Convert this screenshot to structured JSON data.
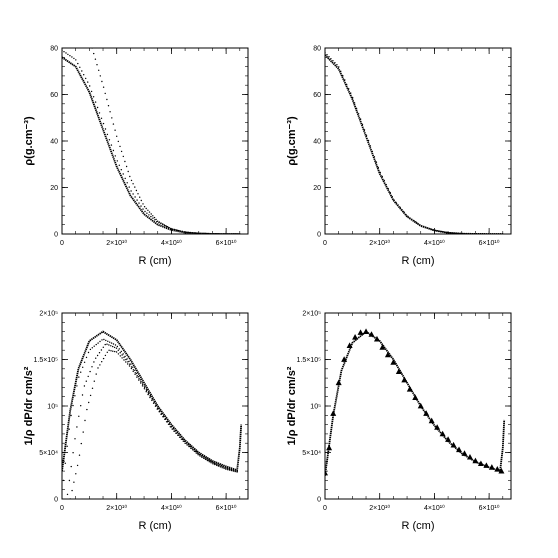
{
  "chart_data": [
    {
      "type": "scatter",
      "panel": "top-left",
      "xlabel": "R (cm)",
      "ylabel": "ρ(g.cm⁻³)",
      "xlim": [
        0,
        68000000000.0
      ],
      "ylim": [
        0,
        80
      ],
      "xticks": [
        {
          "v": 0,
          "t": "0"
        },
        {
          "v": 20000000000.0,
          "t": "2×10¹⁰"
        },
        {
          "v": 40000000000.0,
          "t": "4×10¹⁰"
        },
        {
          "v": 60000000000.0,
          "t": "6×10¹⁰"
        }
      ],
      "yticks": [
        {
          "v": 0,
          "t": "0"
        },
        {
          "v": 20,
          "t": "20"
        },
        {
          "v": 40,
          "t": "40"
        },
        {
          "v": 60,
          "t": "60"
        },
        {
          "v": 80,
          "t": "80"
        }
      ],
      "series": [
        {
          "style": "thick",
          "x": [
            0,
            5000000000.0,
            10000000000.0,
            15000000000.0,
            20000000000.0,
            25000000000.0,
            30000000000.0,
            35000000000.0,
            40000000000.0,
            45000000000.0,
            50000000000.0,
            55000000000.0,
            60000000000.0,
            65000000000.0
          ],
          "y": [
            76,
            72,
            61,
            45,
            29,
            16.5,
            8.5,
            4,
            1.7,
            0.6,
            0.2,
            0.05,
            0.01,
            0
          ]
        },
        {
          "style": "dotted",
          "x": [
            0,
            5000000000.0,
            10000000000.0,
            15000000000.0,
            20000000000.0,
            25000000000.0,
            30000000000.0,
            35000000000.0,
            40000000000.0,
            45000000000.0,
            50000000000.0,
            55000000000.0,
            60000000000.0,
            65000000000.0
          ],
          "y": [
            79,
            75,
            64,
            48,
            32,
            19,
            10,
            5,
            2.2,
            0.8,
            0.3,
            0.08,
            0.02,
            0
          ]
        },
        {
          "style": "dotted",
          "x": [
            11000000000.0,
            15000000000.0,
            20000000000.0,
            25000000000.0,
            30000000000.0,
            35000000000.0,
            40000000000.0,
            45000000000.0,
            50000000000.0,
            55000000000.0,
            60000000000.0,
            65000000000.0
          ],
          "y": [
            80,
            64,
            42,
            24,
            12,
            5.5,
            2.2,
            0.8,
            0.3,
            0.1,
            0.02,
            0
          ]
        }
      ]
    },
    {
      "type": "scatter",
      "panel": "top-right",
      "xlabel": "R (cm)",
      "ylabel": "ρ(g.cm⁻³)",
      "xlim": [
        0,
        68000000000.0
      ],
      "ylim": [
        0,
        80
      ],
      "xticks": [
        {
          "v": 0,
          "t": "0"
        },
        {
          "v": 20000000000.0,
          "t": "2×10¹⁰"
        },
        {
          "v": 40000000000.0,
          "t": "4×10¹⁰"
        },
        {
          "v": 60000000000.0,
          "t": "6×10¹⁰"
        }
      ],
      "yticks": [
        {
          "v": 0,
          "t": "0"
        },
        {
          "v": 20,
          "t": "20"
        },
        {
          "v": 40,
          "t": "40"
        },
        {
          "v": 60,
          "t": "60"
        },
        {
          "v": 80,
          "t": "80"
        }
      ],
      "series": [
        {
          "style": "thick",
          "x": [
            0,
            5000000000.0,
            10000000000.0,
            15000000000.0,
            20000000000.0,
            25000000000.0,
            30000000000.0,
            35000000000.0,
            40000000000.0,
            45000000000.0,
            50000000000.0,
            55000000000.0,
            60000000000.0,
            65000000000.0
          ],
          "y": [
            77,
            71,
            58,
            42,
            26,
            14.5,
            7.5,
            3.5,
            1.5,
            0.5,
            0.15,
            0.04,
            0.01,
            0
          ]
        },
        {
          "style": "dotted",
          "x": [
            0,
            5000000000.0,
            10000000000.0,
            15000000000.0,
            20000000000.0,
            25000000000.0,
            30000000000.0,
            35000000000.0,
            40000000000.0,
            45000000000.0,
            50000000000.0,
            55000000000.0,
            60000000000.0,
            65000000000.0
          ],
          "y": [
            78,
            72,
            59,
            43,
            27,
            15,
            7.8,
            3.7,
            1.6,
            0.55,
            0.17,
            0.05,
            0.01,
            0
          ]
        }
      ]
    },
    {
      "type": "scatter",
      "panel": "bottom-left",
      "xlabel": "R (cm)",
      "ylabel": "1/ρ dP/dr  cm/s²",
      "xlim": [
        0,
        68000000000.0
      ],
      "ylim": [
        0,
        200000
      ],
      "xticks": [
        {
          "v": 0,
          "t": "0"
        },
        {
          "v": 20000000000.0,
          "t": "2×10¹⁰"
        },
        {
          "v": 40000000000.0,
          "t": "4×10¹⁰"
        },
        {
          "v": 60000000000.0,
          "t": "6×10¹⁰"
        }
      ],
      "yticks": [
        {
          "v": 0,
          "t": "0"
        },
        {
          "v": 50000,
          "t": "5×10⁴"
        },
        {
          "v": 100000,
          "t": "10⁵"
        },
        {
          "v": 150000,
          "t": "1.5×10⁵"
        },
        {
          "v": 200000,
          "t": "2×10⁵"
        }
      ],
      "series": [
        {
          "style": "thick",
          "x": [
            0,
            3000000000.0,
            6000000000.0,
            10000000000.0,
            15000000000.0,
            20000000000.0,
            25000000000.0,
            30000000000.0,
            35000000000.0,
            40000000000.0,
            45000000000.0,
            50000000000.0,
            55000000000.0,
            60000000000.0,
            64000000000.0,
            65000000000.0,
            65500000000.0
          ],
          "y": [
            30000,
            95000,
            140000,
            170000,
            180000,
            171000,
            150000,
            125000,
            100000,
            80000,
            63000,
            50000,
            41000,
            35000,
            31000,
            55000,
            80000
          ]
        },
        {
          "style": "dotted",
          "x": [
            500000000.0,
            3000000000.0,
            6000000000.0,
            10000000000.0,
            15000000000.0,
            20000000000.0,
            25000000000.0,
            30000000000.0,
            35000000000.0,
            40000000000.0,
            45000000000.0,
            50000000000.0,
            55000000000.0,
            60000000000.0,
            64000000000.0
          ],
          "y": [
            20000,
            85000,
            130000,
            160000,
            172000,
            165000,
            146000,
            122000,
            98000,
            78000,
            62000,
            49000,
            40000,
            34000,
            30000
          ]
        },
        {
          "style": "dotted",
          "x": [
            2000000000.0,
            5000000000.0,
            8000000000.0,
            12000000000.0,
            16000000000.0,
            20000000000.0,
            25000000000.0,
            30000000000.0,
            35000000000.0,
            40000000000.0,
            45000000000.0,
            50000000000.0,
            55000000000.0,
            60000000000.0,
            64000000000.0
          ],
          "y": [
            5000,
            70000,
            120000,
            150000,
            167000,
            162000,
            144000,
            121000,
            97000,
            77000,
            61000,
            48000,
            39000,
            33000,
            29500
          ]
        },
        {
          "style": "dotted",
          "x": [
            3000000000.0,
            6000000000.0,
            9000000000.0,
            13000000000.0,
            17000000000.0,
            20000000000.0,
            25000000000.0,
            30000000000.0,
            35000000000.0,
            40000000000.0,
            45000000000.0,
            50000000000.0,
            55000000000.0,
            60000000000.0,
            64000000000.0
          ],
          "y": [
            0,
            40000,
            95000,
            140000,
            160000,
            158000,
            142000,
            119000,
            96000,
            76000,
            60000,
            47000,
            38000,
            32000,
            29000
          ]
        }
      ]
    },
    {
      "type": "scatter",
      "panel": "bottom-right",
      "xlabel": "R (cm)",
      "ylabel": "1/ρ dP/dr  cm/s²",
      "xlim": [
        0,
        68000000000.0
      ],
      "ylim": [
        0,
        200000
      ],
      "xticks": [
        {
          "v": 0,
          "t": "0"
        },
        {
          "v": 20000000000.0,
          "t": "2×10¹⁰"
        },
        {
          "v": 40000000000.0,
          "t": "4×10¹⁰"
        },
        {
          "v": 60000000000.0,
          "t": "6×10¹⁰"
        }
      ],
      "yticks": [
        {
          "v": 0,
          "t": "0"
        },
        {
          "v": 50000,
          "t": "5×10⁴"
        },
        {
          "v": 100000,
          "t": "10⁵"
        },
        {
          "v": 150000,
          "t": "1.5×10⁵"
        },
        {
          "v": 200000,
          "t": "2×10⁵"
        }
      ],
      "series": [
        {
          "style": "thick",
          "x": [
            0,
            3000000000.0,
            6000000000.0,
            10000000000.0,
            15000000000.0,
            20000000000.0,
            25000000000.0,
            30000000000.0,
            35000000000.0,
            40000000000.0,
            45000000000.0,
            50000000000.0,
            55000000000.0,
            60000000000.0,
            64000000000.0,
            65000000000.0,
            65500000000.0
          ],
          "y": [
            25000,
            90000,
            138000,
            168000,
            180000,
            170000,
            150000,
            125000,
            100000,
            79000,
            62000,
            49000,
            40000,
            34000,
            30000,
            55000,
            85000
          ]
        },
        {
          "style": "triangles",
          "x": [
            0,
            1500000000.0,
            3000000000.0,
            5000000000.0,
            7000000000.0,
            9000000000.0,
            11000000000.0,
            13000000000.0,
            15000000000.0,
            17000000000.0,
            19000000000.0,
            21000000000.0,
            23000000000.0,
            25000000000.0,
            27000000000.0,
            29000000000.0,
            31000000000.0,
            33000000000.0,
            35000000000.0,
            37000000000.0,
            39000000000.0,
            41000000000.0,
            43000000000.0,
            45000000000.0,
            47000000000.0,
            49000000000.0,
            51000000000.0,
            53000000000.0,
            55000000000.0,
            57000000000.0,
            59000000000.0,
            61000000000.0,
            63000000000.0,
            64500000000.0
          ],
          "y": [
            28000,
            55000,
            92000,
            125000,
            150000,
            165000,
            174000,
            179000,
            180000,
            177000,
            172000,
            163000,
            155000,
            147000,
            137000,
            128000,
            118000,
            109000,
            100000,
            92000,
            84000,
            77000,
            70000,
            64000,
            58000,
            53000,
            49000,
            45000,
            41000,
            38000,
            36000,
            34000,
            32000,
            30000
          ]
        }
      ]
    }
  ]
}
